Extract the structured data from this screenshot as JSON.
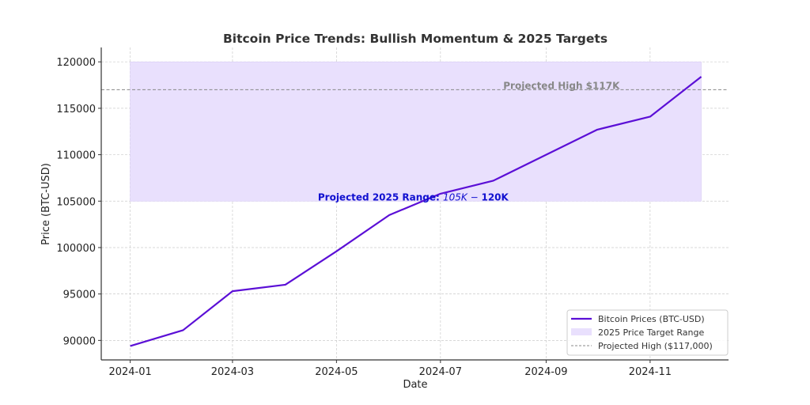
{
  "chart_data": {
    "type": "line",
    "title": "Bitcoin Price Trends: Bullish Momentum & 2025 Targets",
    "xlabel": "Date",
    "ylabel": "Price (BTC-USD)",
    "x": [
      "2024-01-01",
      "2024-02-01",
      "2024-03-01",
      "2024-04-01",
      "2024-05-01",
      "2024-06-01",
      "2024-07-01",
      "2024-08-01",
      "2024-09-01",
      "2024-10-01",
      "2024-11-01",
      "2024-12-01"
    ],
    "series": [
      {
        "name": "Bitcoin Prices (BTC-USD)",
        "color": "#5b0fd6",
        "values": [
          89400,
          91100,
          95300,
          96000,
          99600,
          103500,
          105800,
          107200,
          110000,
          112700,
          114100,
          118400
        ]
      }
    ],
    "target_range": {
      "name": "2025 Price Target Range",
      "low": 105000,
      "high": 120000,
      "from": "2024-01-01",
      "to": "2024-12-01",
      "color": "#e9e0fd"
    },
    "projected_high": {
      "name": "Projected High ($117,000)",
      "value": 117000,
      "color": "#888888"
    },
    "annotations": [
      {
        "text": "Projected High $117K",
        "x": "2024-09-10",
        "y": 117000,
        "color": "#888888"
      },
      {
        "text_bold": "Projected 2025 Range: ",
        "text_italic": "105K",
        "text_dash": " − ",
        "text_bold2": "120K",
        "x": "2024-06-15",
        "y": 105000,
        "color": "#1010d0"
      }
    ],
    "xticks": [
      "2024-01",
      "2024-03",
      "2024-05",
      "2024-07",
      "2024-09",
      "2024-11"
    ],
    "yticks": [
      90000,
      95000,
      100000,
      105000,
      110000,
      115000,
      120000
    ],
    "xlim": [
      "2023-12-15",
      "2024-12-17"
    ],
    "ylim": [
      87900,
      121550
    ],
    "grid": true,
    "legend_position": "lower-right"
  }
}
